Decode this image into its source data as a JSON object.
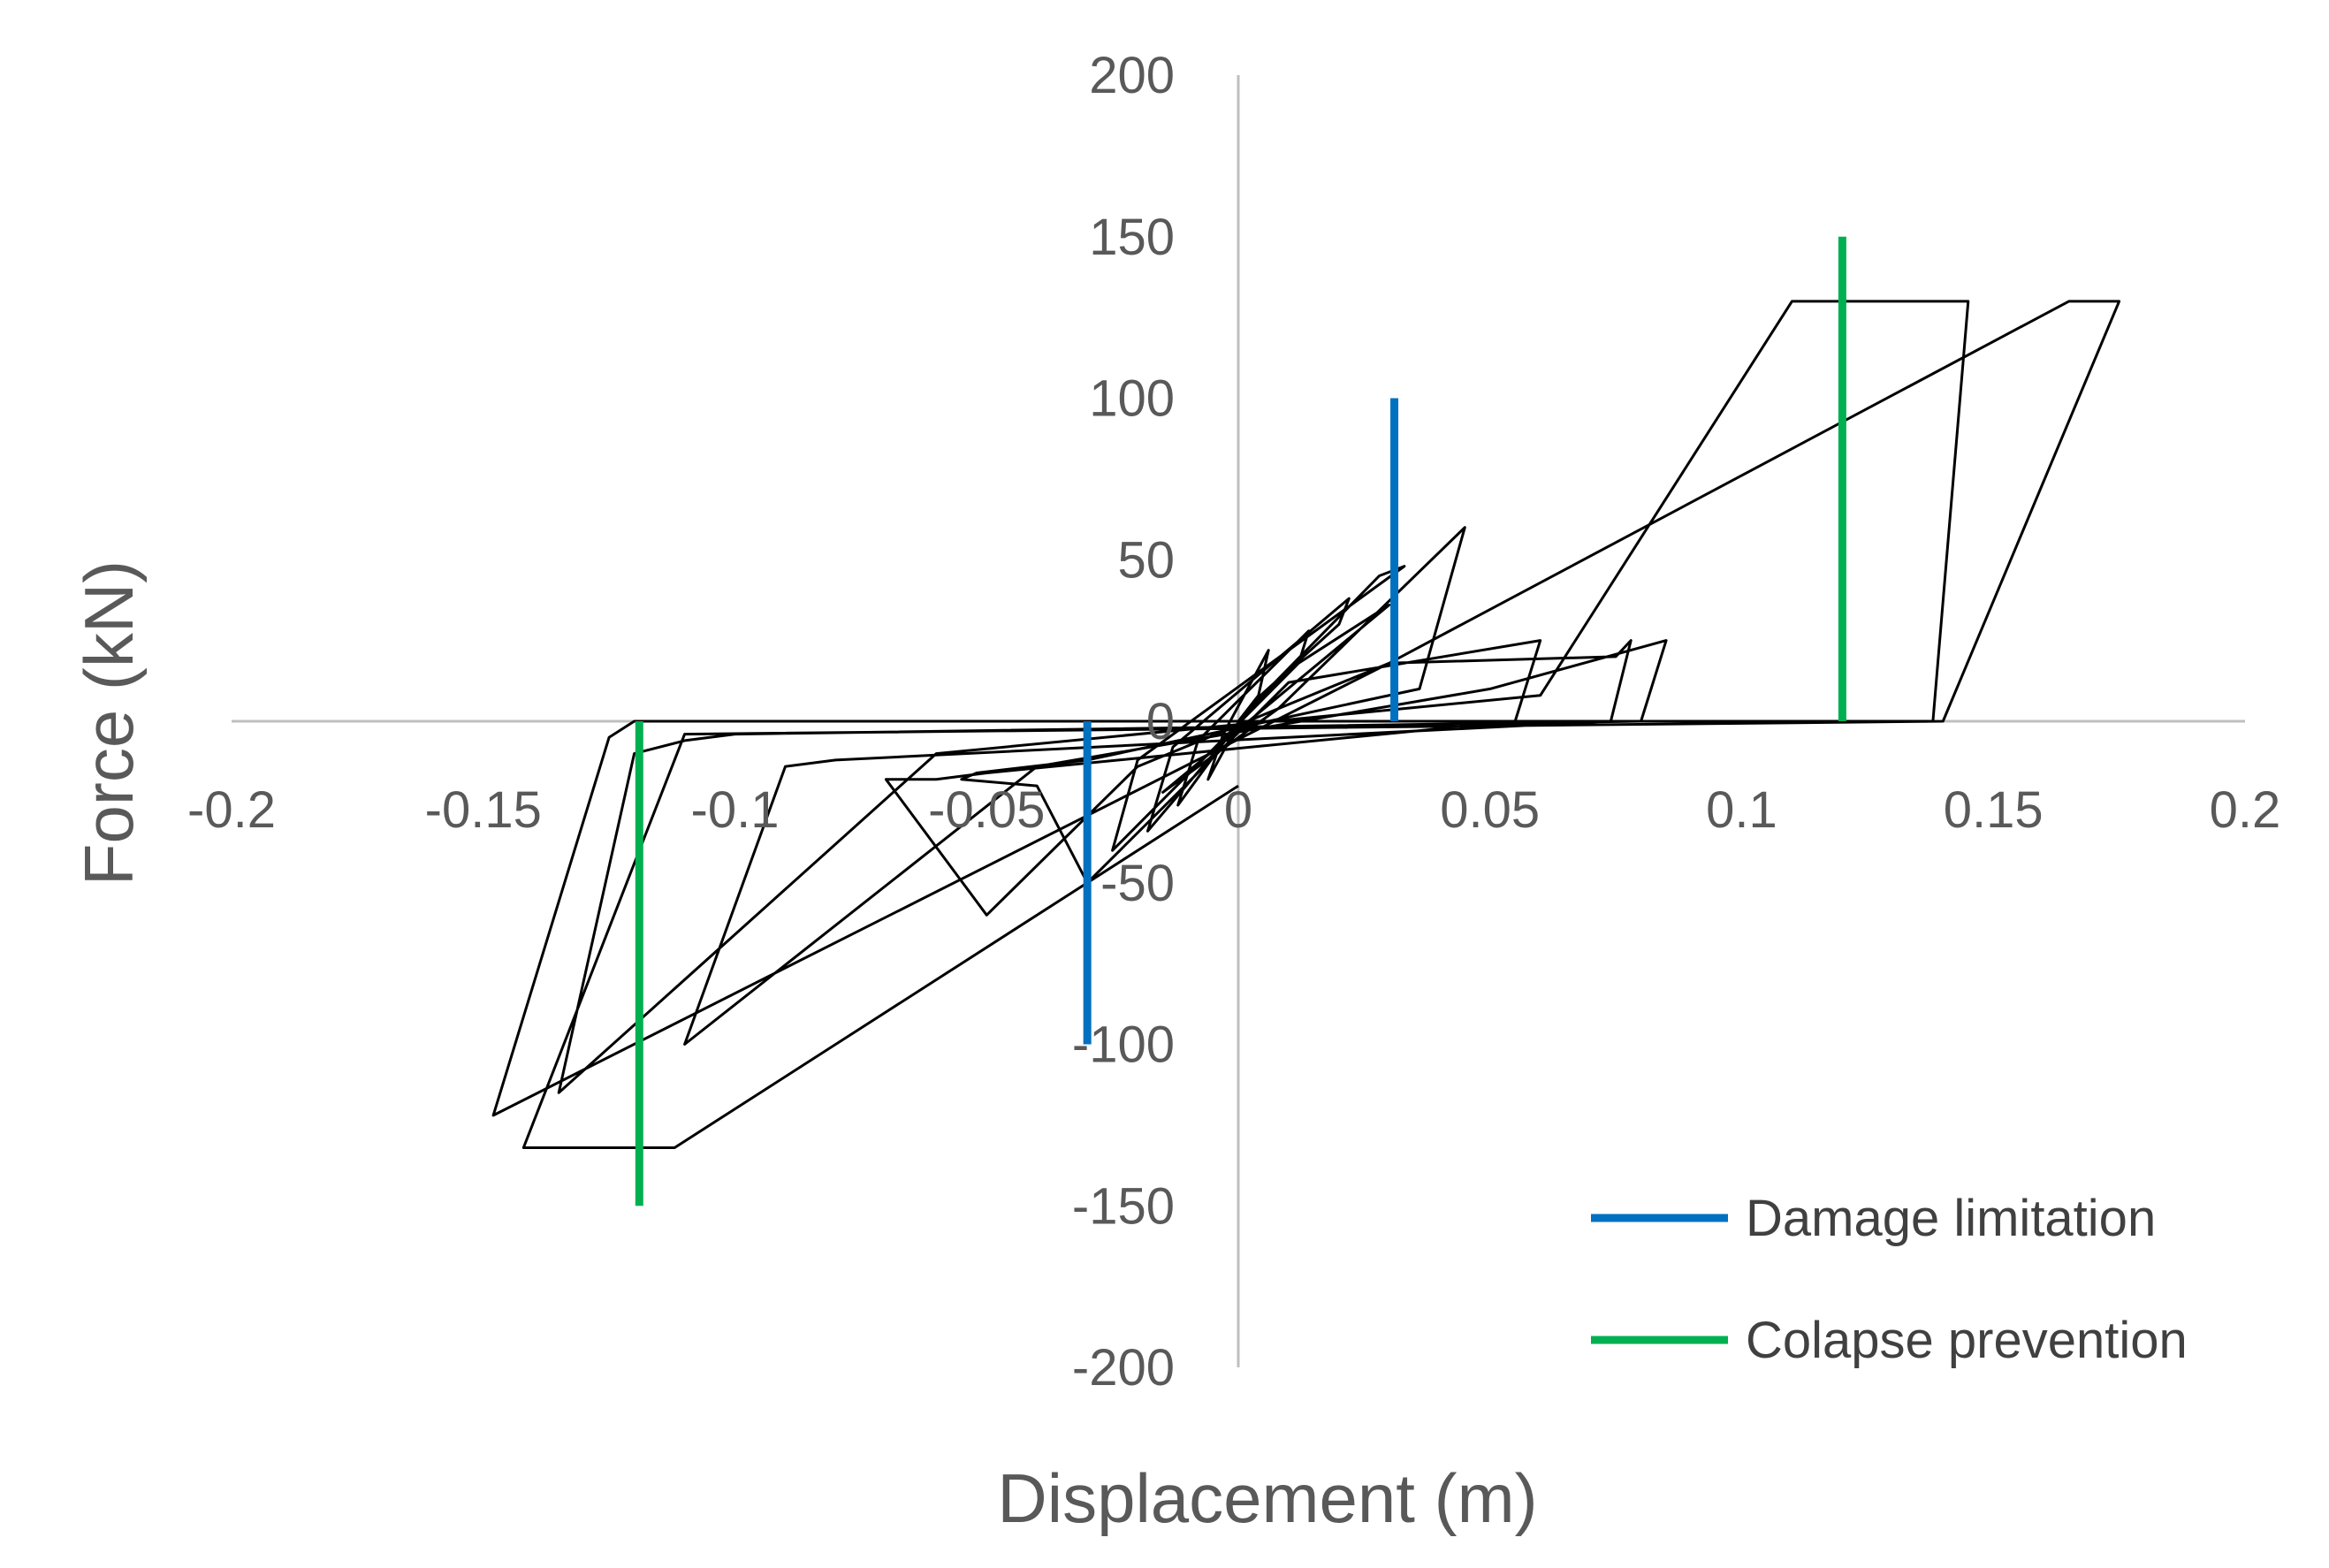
{
  "chart_data": {
    "type": "line",
    "title": "",
    "xlabel": "Displacement (m)",
    "ylabel": "Force (kN)",
    "xlim": [
      -0.2,
      0.2
    ],
    "ylim": [
      -200,
      200
    ],
    "x_ticks": [
      "-0.2",
      "-0.15",
      "-0.1",
      "-0.05",
      "0",
      "0.05",
      "0.1",
      "0.15",
      "0.2"
    ],
    "y_ticks": [
      "200",
      "150",
      "100",
      "50",
      "0",
      "-50",
      "-100",
      "-150",
      "-200"
    ],
    "grid": false,
    "legend_position": "bottom-right",
    "series": [
      {
        "color": "#000000",
        "points": [
          [
            0,
            0
          ],
          [
            0.004,
            8
          ],
          [
            0.006,
            22
          ],
          [
            -0.003,
            -4
          ],
          [
            -0.006,
            -18
          ],
          [
            0.001,
            2
          ],
          [
            0.012,
            18
          ],
          [
            0.014,
            28
          ],
          [
            -0.008,
            -6
          ],
          [
            -0.012,
            -26
          ],
          [
            0.003,
            6
          ],
          [
            0.02,
            30
          ],
          [
            0.022,
            38
          ],
          [
            -0.013,
            -8
          ],
          [
            -0.018,
            -34
          ],
          [
            0.006,
            10
          ],
          [
            0.028,
            45
          ],
          [
            0.033,
            48
          ],
          [
            -0.02,
            -12
          ],
          [
            -0.025,
            -40
          ],
          [
            0.012,
            18
          ],
          [
            0.03,
            36
          ],
          [
            -0.015,
            -22
          ],
          [
            0.008,
            4
          ],
          [
            0.045,
            60
          ],
          [
            0.036,
            10
          ],
          [
            -0.03,
            -12
          ],
          [
            -0.052,
            -16
          ],
          [
            -0.055,
            -18
          ],
          [
            -0.04,
            -20
          ],
          [
            -0.03,
            -50
          ],
          [
            0.01,
            12
          ],
          [
            0.06,
            25
          ],
          [
            0.055,
            0
          ],
          [
            -0.05,
            -16
          ],
          [
            -0.06,
            -18
          ],
          [
            -0.07,
            -18
          ],
          [
            -0.05,
            -60
          ],
          [
            -0.02,
            -14
          ],
          [
            0.03,
            18
          ],
          [
            0.075,
            20
          ],
          [
            0.078,
            25
          ],
          [
            0.074,
            0
          ],
          [
            -0.08,
            -12
          ],
          [
            -0.09,
            -14
          ],
          [
            -0.11,
            -100
          ],
          [
            -0.04,
            -14
          ],
          [
            0.05,
            10
          ],
          [
            0.085,
            25
          ],
          [
            0.08,
            0
          ],
          [
            -0.1,
            -4
          ],
          [
            -0.11,
            -6
          ],
          [
            -0.12,
            -10
          ],
          [
            -0.135,
            -115
          ],
          [
            -0.06,
            -10
          ],
          [
            0.06,
            8
          ],
          [
            0.11,
            130
          ],
          [
            0.145,
            130
          ],
          [
            0.138,
            0
          ],
          [
            -0.12,
            0
          ],
          [
            -0.125,
            -5
          ],
          [
            -0.148,
            -122
          ],
          [
            0.03,
            18
          ],
          [
            0.165,
            130
          ],
          [
            0.175,
            130
          ],
          [
            0.14,
            0
          ],
          [
            -0.11,
            -4
          ],
          [
            -0.142,
            -132
          ],
          [
            -0.112,
            -132
          ],
          [
            0,
            -20
          ]
        ]
      },
      {
        "name": "Damage limitation",
        "color": "#0070C0",
        "segments": [
          [
            [
              0.031,
              0
            ],
            [
              0.031,
              100
            ]
          ],
          [
            [
              -0.03,
              0
            ],
            [
              -0.03,
              -100
            ]
          ]
        ]
      },
      {
        "name": "Colapse prevention",
        "color": "#00B050",
        "segments": [
          [
            [
              0.12,
              0
            ],
            [
              0.12,
              150
            ]
          ],
          [
            [
              -0.119,
              0
            ],
            [
              -0.119,
              -150
            ]
          ]
        ]
      }
    ]
  }
}
